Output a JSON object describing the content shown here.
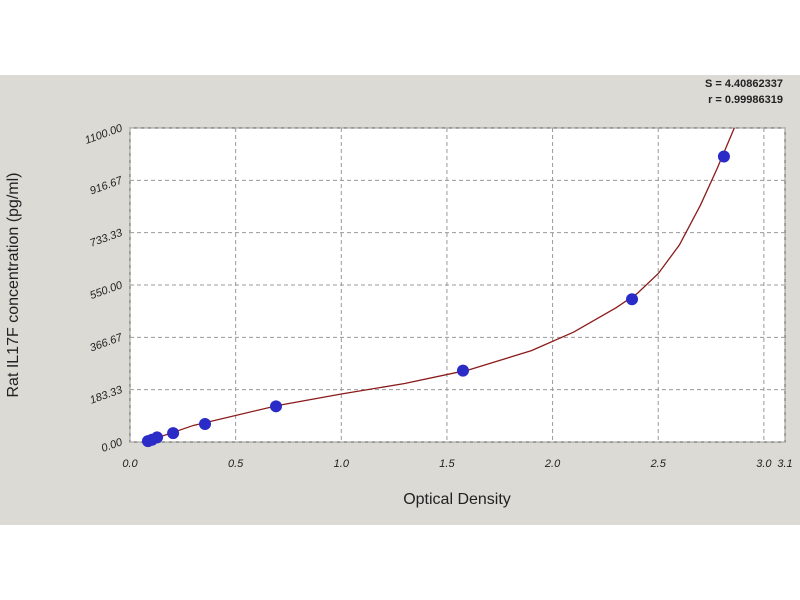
{
  "chart_data": {
    "type": "scatter",
    "annotations": [
      "S = 4.40862337",
      "r = 0.99986319"
    ],
    "x_label": "Optical Density",
    "y_label": "Rat IL17F concentration (pg/ml)",
    "series": [
      {
        "color": "#2b2bc8",
        "x": [
          0.085,
          0.104,
          0.128,
          0.204,
          0.355,
          0.691,
          1.576,
          2.376,
          2.811
        ],
        "values": [
          3,
          8,
          16,
          31,
          63,
          125,
          250,
          500,
          1000
        ]
      }
    ],
    "fit": {
      "color": "#8b1a1a",
      "x": [
        0.07,
        0.3,
        0.7,
        1.0,
        1.3,
        1.6,
        1.9,
        2.1,
        2.3,
        2.4,
        2.5,
        2.6,
        2.7,
        2.78,
        2.86
      ],
      "values": [
        0,
        58,
        128,
        168,
        205,
        252,
        320,
        385,
        470,
        520,
        590,
        690,
        830,
        960,
        1100
      ]
    },
    "xlim": [
      0,
      3.1
    ],
    "xticks": [
      {
        "value": 0,
        "label": "0.0"
      },
      0.5,
      {
        "value": 1,
        "label": "1.0"
      },
      1.5,
      {
        "value": 2,
        "label": "2.0"
      },
      2.5,
      {
        "value": 3,
        "label": "3.0"
      },
      3.1
    ],
    "ylim": [
      0,
      1100
    ],
    "yticks": [
      {
        "value": 0,
        "label": "0.00"
      },
      {
        "value": 183.33,
        "label": "183.33"
      },
      {
        "value": 366.67,
        "label": "366.67"
      },
      {
        "value": 550,
        "label": "550.00"
      },
      {
        "value": 733.33,
        "label": "733.33"
      },
      {
        "value": 916.67,
        "label": "916.67"
      },
      {
        "value": 1100,
        "label": "1100.00"
      }
    ],
    "grid": true
  }
}
